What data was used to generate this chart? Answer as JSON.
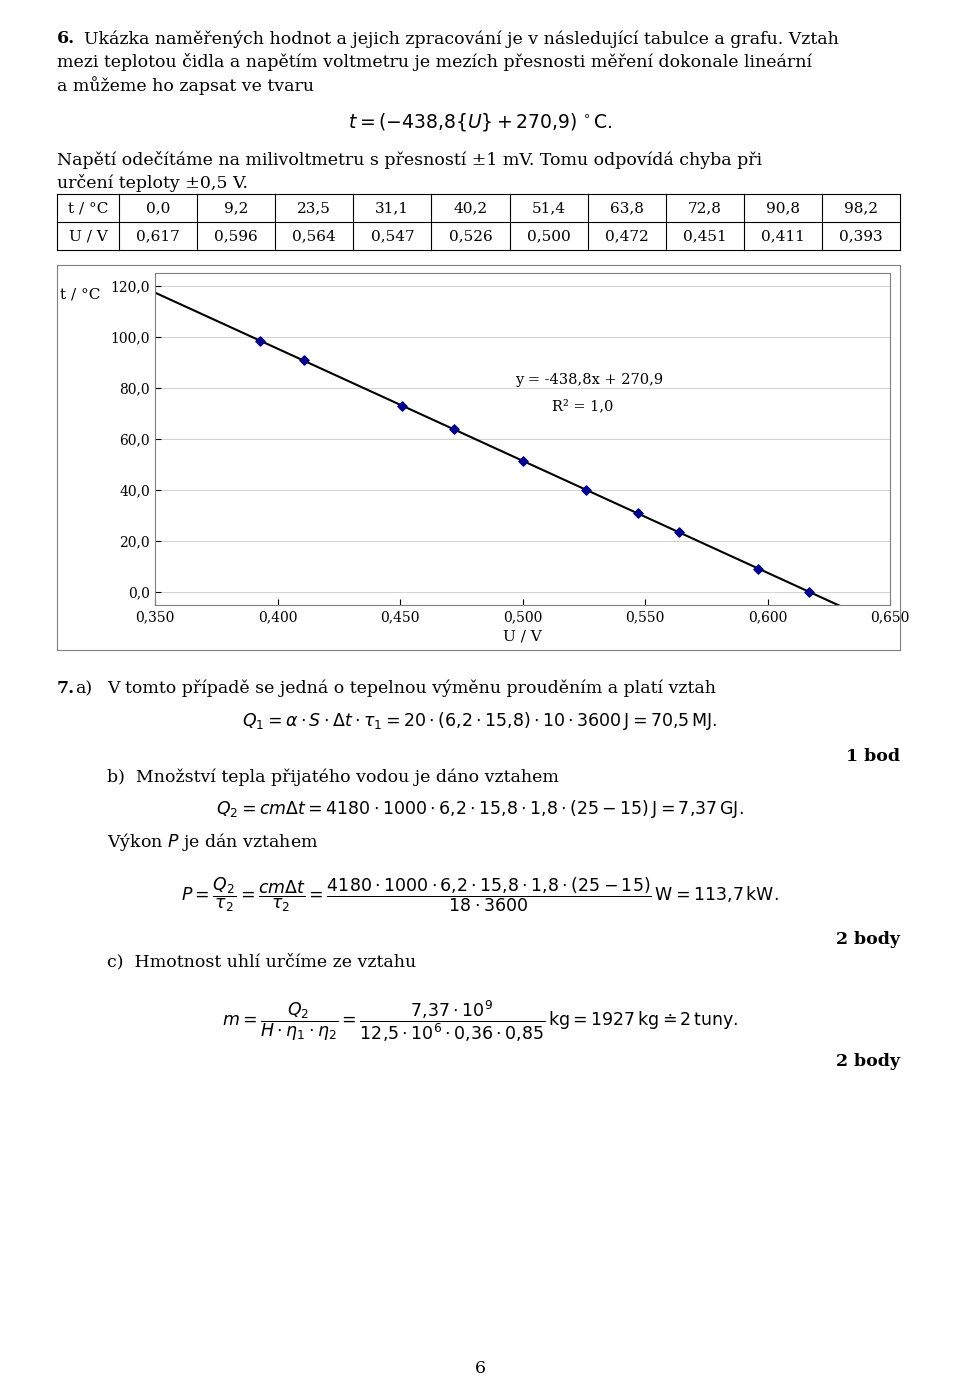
{
  "table_t_str": [
    "0,0",
    "9,2",
    "23,5",
    "31,1",
    "40,2",
    "51,4",
    "63,8",
    "72,8",
    "90,8",
    "98,2"
  ],
  "table_U_str": [
    "0,617",
    "0,596",
    "0,564",
    "0,547",
    "0,526",
    "0,500",
    "0,472",
    "0,451",
    "0,411",
    "0,393"
  ],
  "scatter_U": [
    0.617,
    0.596,
    0.564,
    0.547,
    0.526,
    0.5,
    0.472,
    0.451,
    0.411,
    0.393
  ],
  "scatter_t": [
    0.0,
    9.2,
    23.5,
    31.1,
    40.2,
    51.4,
    63.8,
    72.8,
    90.8,
    98.2
  ],
  "line_slope": -438.8,
  "line_intercept": 270.9,
  "xlim": [
    0.35,
    0.65
  ],
  "ylim": [
    -5,
    125
  ],
  "xticks": [
    0.35,
    0.4,
    0.45,
    0.5,
    0.55,
    0.6,
    0.65
  ],
  "yticks": [
    0.0,
    20.0,
    40.0,
    60.0,
    80.0,
    100.0,
    120.0
  ],
  "annotation_eq": "y = -438,8x + 270,9",
  "annotation_r2": "R2 = 1,0",
  "marker_color": "#00008B",
  "grid_color": "#C0C0C0",
  "fs_main": 12.5,
  "fs_table": 11,
  "fs_chart_tick": 10,
  "page_num": "6"
}
